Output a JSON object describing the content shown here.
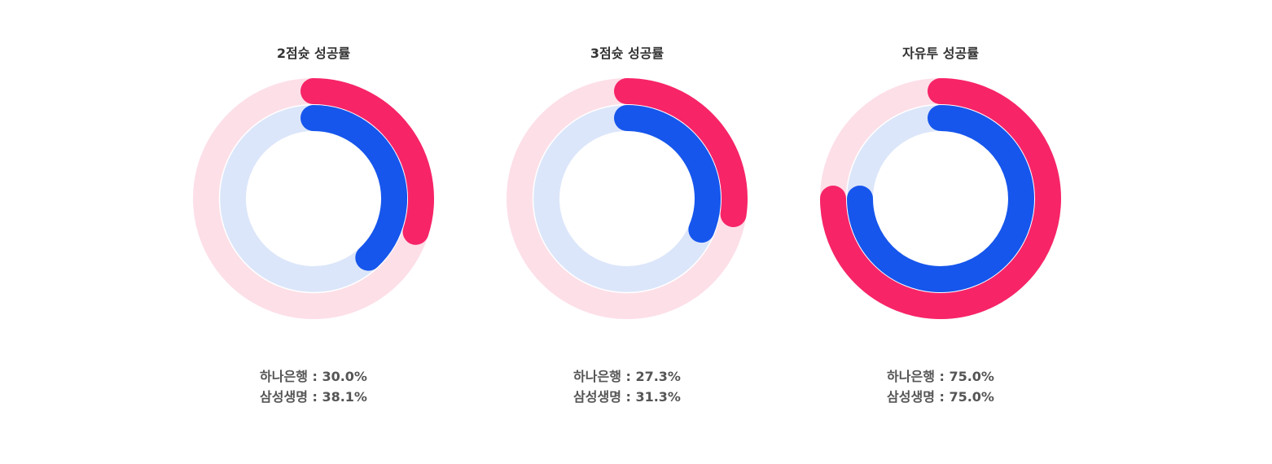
{
  "colors": {
    "hana": "#F72468",
    "hana_track": "#FDDFE8",
    "samsung": "#1656EC",
    "samsung_track": "#DCE6FA"
  },
  "chart_data": [
    {
      "type": "pie",
      "title": "2점슛 성공률",
      "series": [
        {
          "name": "하나은행",
          "value": 30.0,
          "label": "하나은행 : 30.0%"
        },
        {
          "name": "삼성생명",
          "value": 38.1,
          "label": "삼성생명 : 38.1%"
        }
      ]
    },
    {
      "type": "pie",
      "title": "3점슛 성공률",
      "series": [
        {
          "name": "하나은행",
          "value": 27.3,
          "label": "하나은행 : 27.3%"
        },
        {
          "name": "삼성생명",
          "value": 31.3,
          "label": "삼성생명 : 31.3%"
        }
      ]
    },
    {
      "type": "pie",
      "title": "자유투 성공률",
      "series": [
        {
          "name": "하나은행",
          "value": 75.0,
          "label": "하나은행 : 75.0%"
        },
        {
          "name": "삼성생명",
          "value": 75.0,
          "label": "삼성생명 : 75.0%"
        }
      ]
    }
  ]
}
